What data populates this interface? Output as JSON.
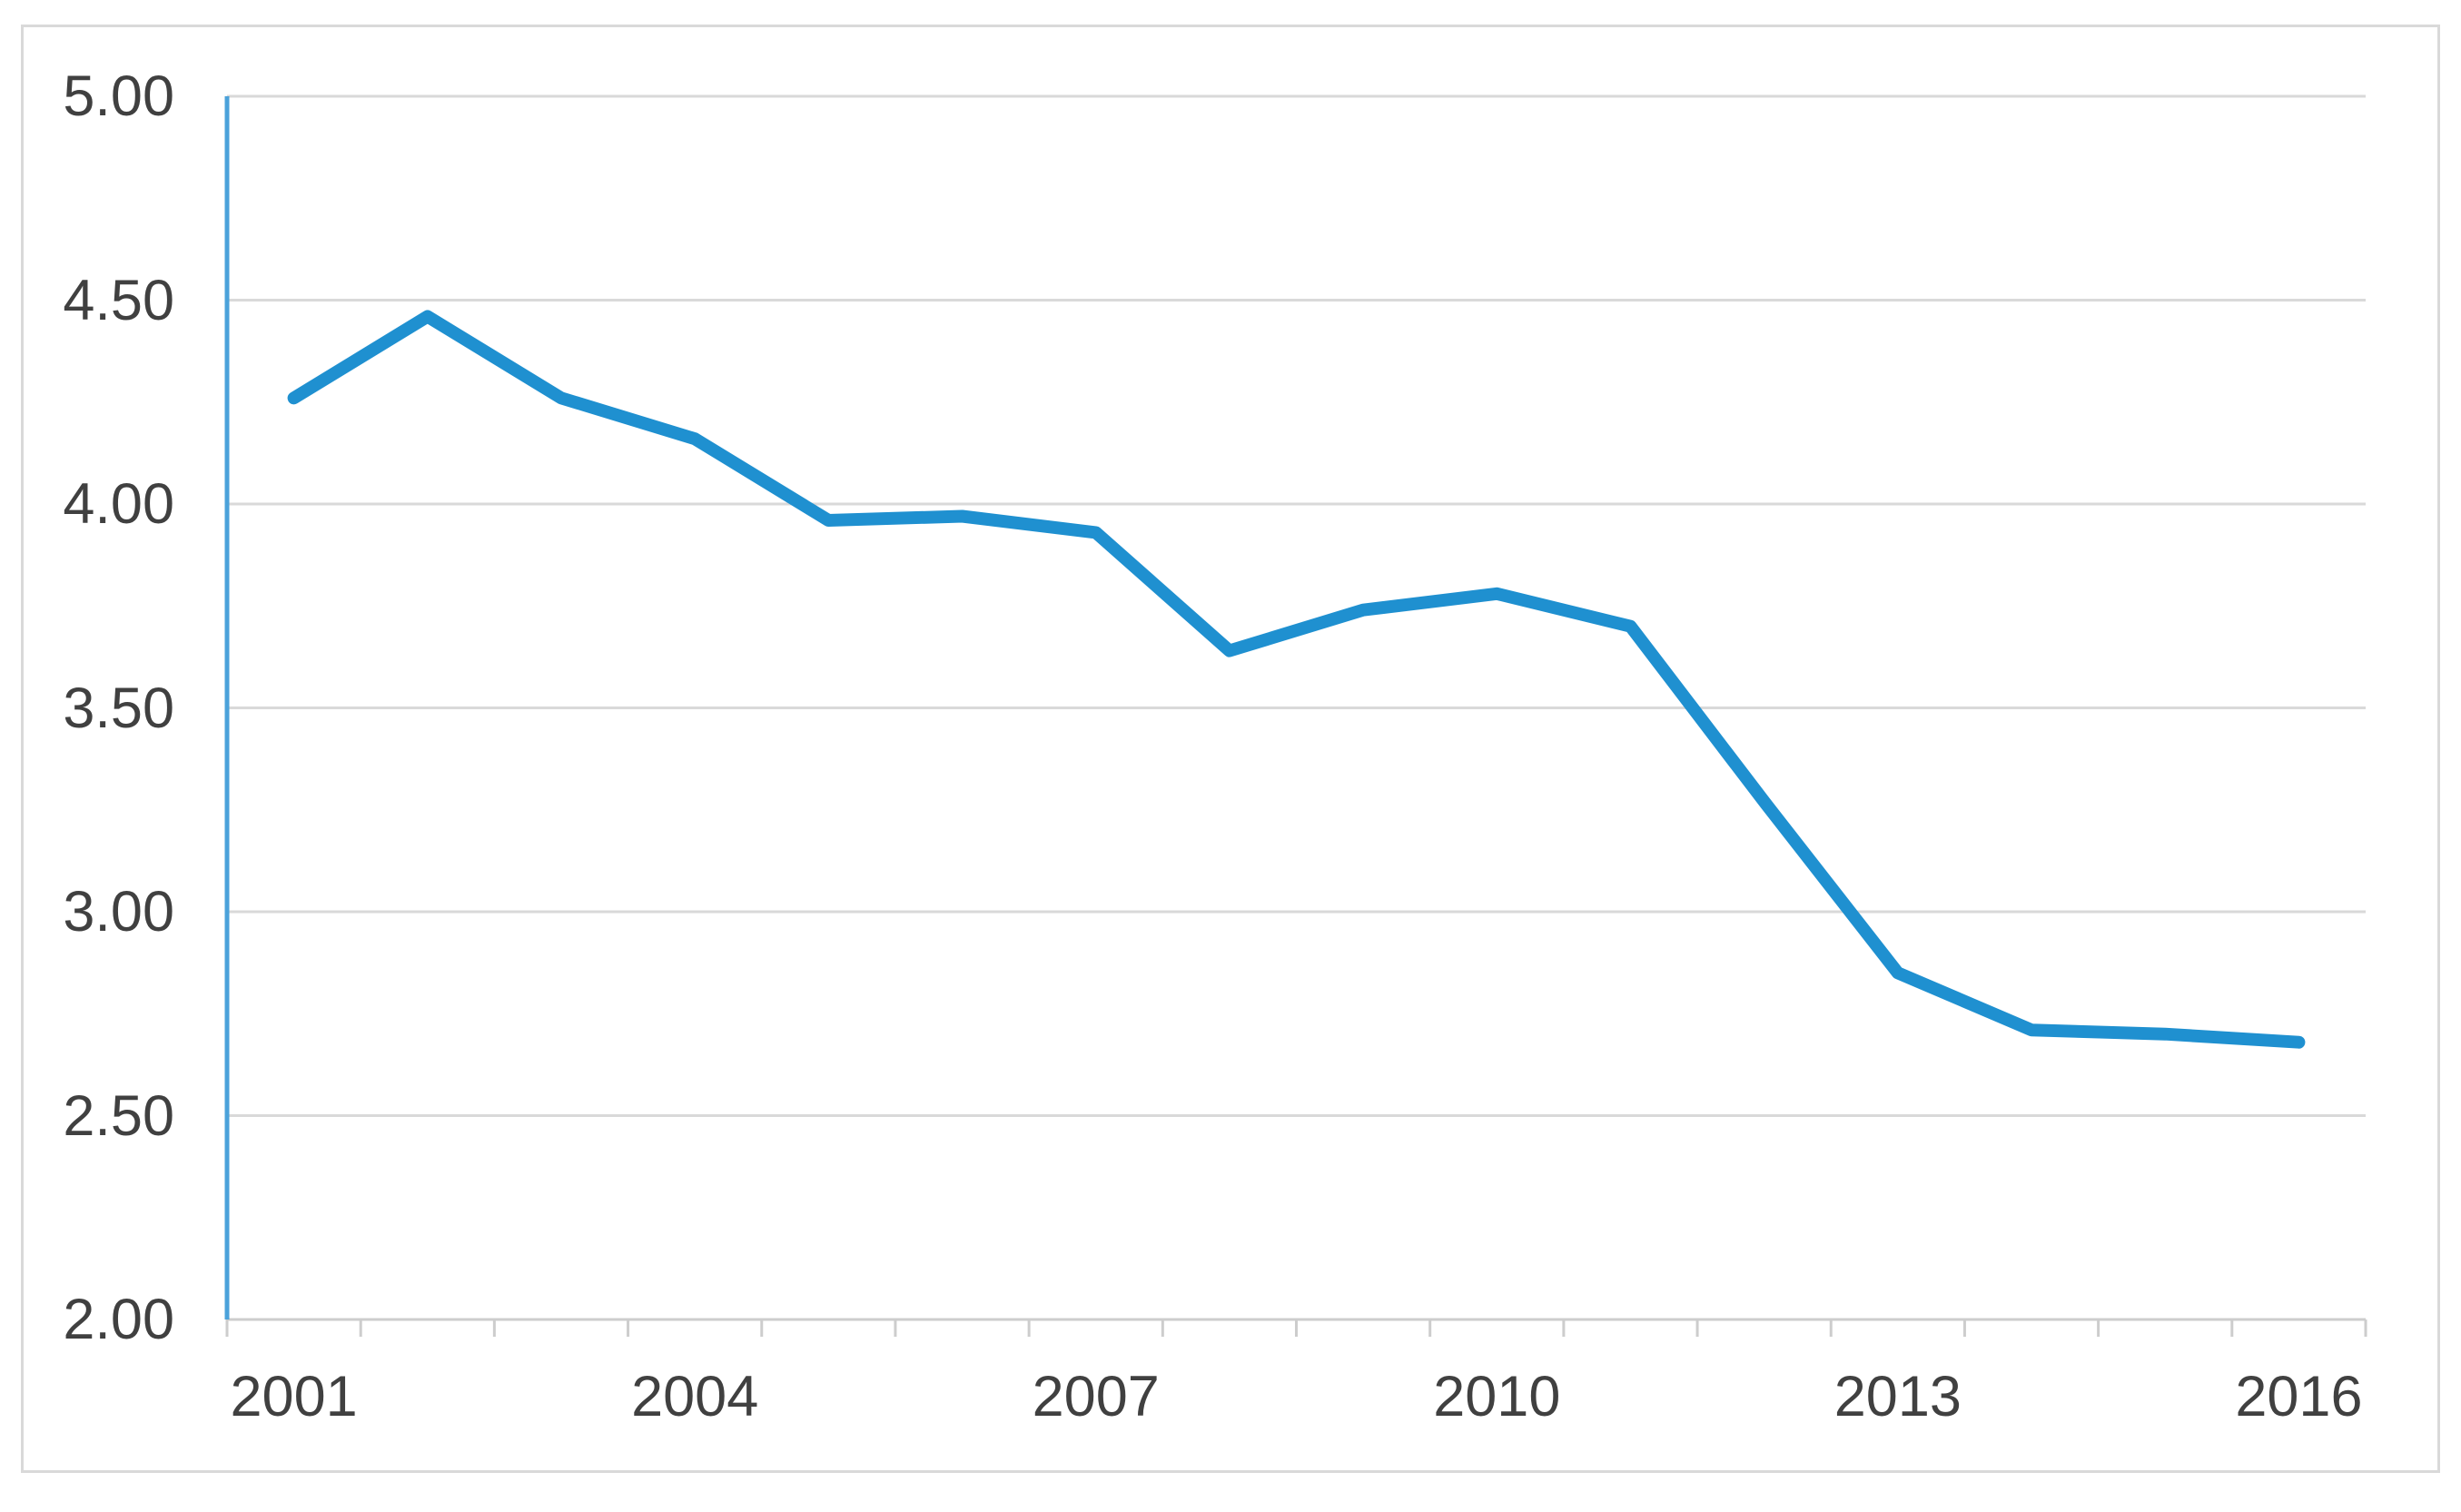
{
  "chart_data": {
    "type": "line",
    "title": "",
    "categories": [
      2001,
      2002,
      2003,
      2004,
      2005,
      2006,
      2007,
      2008,
      2009,
      2010,
      2011,
      2012,
      2013,
      2014,
      2015,
      2016
    ],
    "values": [
      4.26,
      4.46,
      4.26,
      4.16,
      3.96,
      3.97,
      3.93,
      3.64,
      3.74,
      3.78,
      3.7,
      3.27,
      2.85,
      2.71,
      2.7,
      2.68
    ],
    "ylim": [
      2.0,
      5.0
    ],
    "y_ticks": [
      {
        "value": 5.0,
        "label": "5.00"
      },
      {
        "value": 4.5,
        "label": "4.50"
      },
      {
        "value": 4.0,
        "label": "4.00"
      },
      {
        "value": 3.5,
        "label": "3.50"
      },
      {
        "value": 3.0,
        "label": "3.00"
      },
      {
        "value": 2.5,
        "label": "2.50"
      },
      {
        "value": 2.0,
        "label": "2.00"
      }
    ],
    "x_tick_labels": [
      2001,
      2004,
      2007,
      2010,
      2013,
      2016
    ],
    "grid": "horizontal",
    "legend": "none",
    "colors": {
      "series_line": "#1f90d0",
      "gridline": "#d9d9d9",
      "axis": "#cdcdcd",
      "y_axis_line": "#4ba2da",
      "tick_label": "#404040",
      "frame_border": "#d9d9d9",
      "background": "#ffffff"
    }
  }
}
